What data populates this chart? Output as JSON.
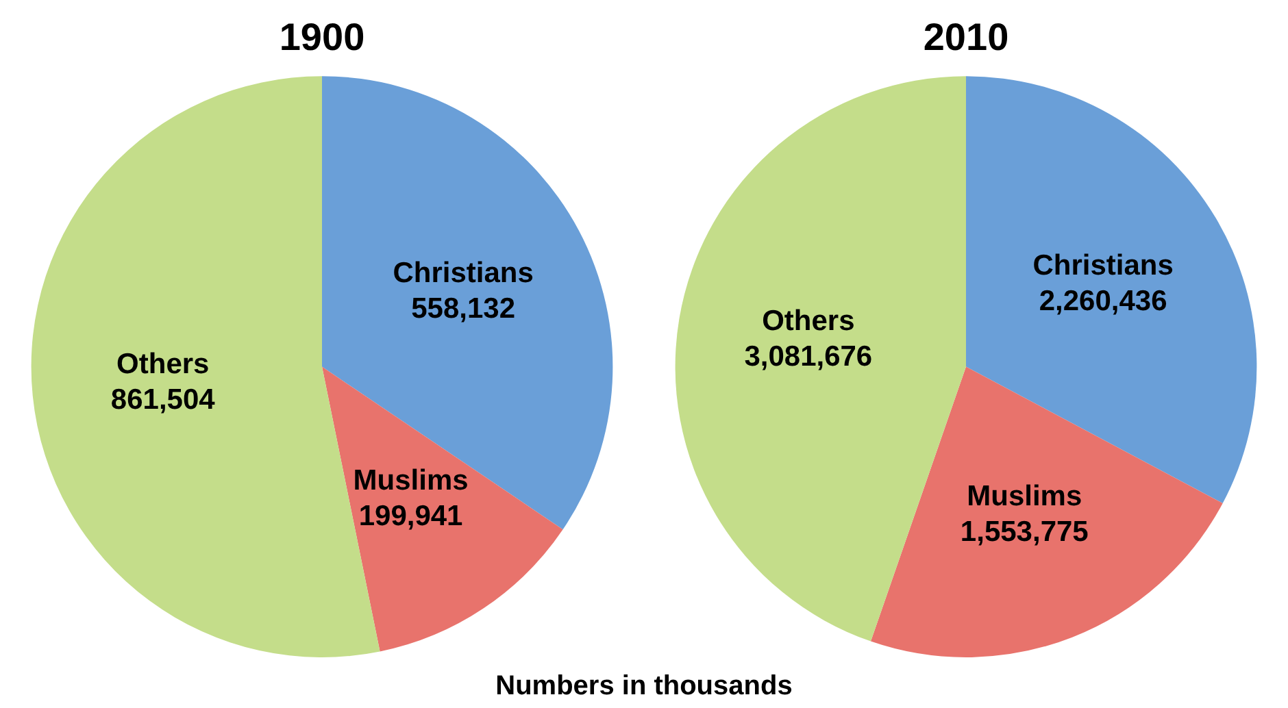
{
  "chart_data": [
    {
      "type": "pie",
      "title": "1900",
      "categories": [
        "Christians",
        "Muslims",
        "Others"
      ],
      "values": [
        558132,
        199941,
        861504
      ],
      "colors": [
        "#6a9fd8",
        "#e8736c",
        "#c4dd8a"
      ],
      "value_labels": [
        "558,132",
        "199,941",
        "861,504"
      ],
      "legend": false,
      "annotations": [
        "Numbers in thousands"
      ]
    },
    {
      "type": "pie",
      "title": "2010",
      "categories": [
        "Christians",
        "Muslims",
        "Others"
      ],
      "values": [
        2260436,
        1553775,
        3081676
      ],
      "colors": [
        "#6a9fd8",
        "#e8736c",
        "#c4dd8a"
      ],
      "value_labels": [
        "2,260,436",
        "1,553,775",
        "3,081,676"
      ],
      "legend": false
    }
  ]
}
